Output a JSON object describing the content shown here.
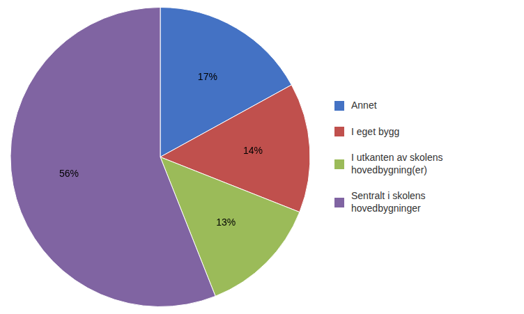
{
  "chart_data": {
    "type": "pie",
    "categories": [
      "Annet",
      "I eget bygg",
      "I utkanten av skolens\nhovedbygning(er)",
      "Sentralt i skolens\nhovedbygninger"
    ],
    "values": [
      17,
      14,
      13,
      56
    ],
    "value_labels": [
      "17%",
      "14%",
      "13%",
      "56%"
    ],
    "colors": [
      "#4472C4",
      "#C0504D",
      "#9BBB59",
      "#8064A2"
    ],
    "data_labels": true,
    "legend": "right"
  }
}
